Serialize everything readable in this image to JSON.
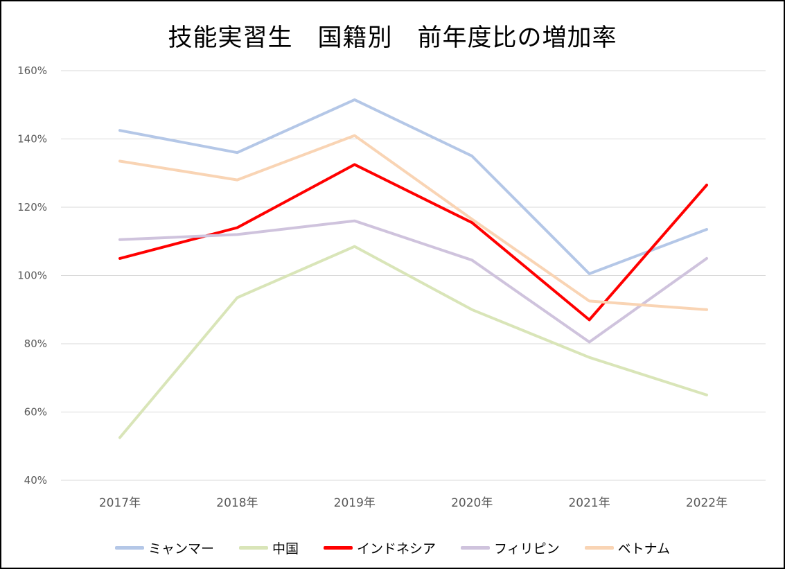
{
  "chart_data": {
    "type": "line",
    "title": "技能実習生　国籍別　前年度比の増加率",
    "xlabel": "",
    "ylabel": "",
    "categories": [
      "2017年",
      "2018年",
      "2019年",
      "2020年",
      "2021年",
      "2022年"
    ],
    "ylim": [
      40,
      160
    ],
    "yticks": [
      40,
      60,
      80,
      100,
      120,
      140,
      160
    ],
    "ytick_labels": [
      "40%",
      "60%",
      "80%",
      "100%",
      "120%",
      "140%",
      "160%"
    ],
    "grid": true,
    "legend_position": "bottom",
    "series": [
      {
        "name": "ミャンマー",
        "color": "#b4c7e7",
        "values": [
          142.5,
          136,
          151.5,
          135,
          100.5,
          113.5
        ]
      },
      {
        "name": "中国",
        "color": "#d9e5b8",
        "values": [
          52.5,
          93.5,
          108.5,
          90,
          76,
          65
        ]
      },
      {
        "name": "インドネシア",
        "color": "#ff0000",
        "values": [
          105,
          114,
          132.5,
          115.5,
          87,
          126.5
        ]
      },
      {
        "name": "フィリピン",
        "color": "#cfc3dd",
        "values": [
          110.5,
          112,
          116,
          104.5,
          80.5,
          105
        ]
      },
      {
        "name": "ベトナム",
        "color": "#f9d4b4",
        "values": [
          133.5,
          128,
          141,
          116.5,
          92.5,
          90
        ]
      }
    ]
  },
  "colors": {
    "gridline": "#d9d9d9",
    "tick_text": "#595959",
    "frame": "#000000"
  }
}
